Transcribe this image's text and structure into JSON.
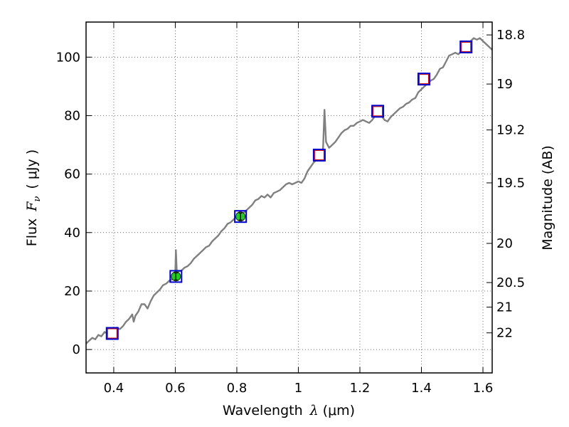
{
  "chart_data": {
    "type": "line",
    "title": "",
    "xlabel": "Wavelength",
    "xlabel_symbol": "λ",
    "xlabel_unit": "(μm)",
    "ylabel": "Flux",
    "ylabel_symbol": "F",
    "ylabel_subscript": "ν",
    "ylabel_unit": "( μJy )",
    "y2label": "Magnitude (AB)",
    "xlim": [
      0.31,
      1.63
    ],
    "ylim": [
      -8,
      112
    ],
    "grid": true,
    "x_ticks": [
      0.4,
      0.6,
      0.8,
      1.0,
      1.2,
      1.4,
      1.6
    ],
    "x_tick_labels": [
      "0.4",
      "0.6",
      "0.8",
      "1",
      "1.2",
      "1.4",
      "1.6"
    ],
    "y_ticks": [
      0,
      20,
      40,
      60,
      80,
      100
    ],
    "y_tick_labels": [
      "0",
      "20",
      "40",
      "60",
      "80",
      "100"
    ],
    "mag_ticks": [
      {
        "label": "18.8",
        "flux": 107.6
      },
      {
        "label": "19",
        "flux": 90.8
      },
      {
        "label": "19.2",
        "flux": 75.1
      },
      {
        "label": "19.5",
        "flux": 57.0
      },
      {
        "label": "20",
        "flux": 36.3
      },
      {
        "label": "20.5",
        "flux": 22.9
      },
      {
        "label": "21",
        "flux": 14.5
      },
      {
        "label": "22",
        "flux": 5.7
      }
    ],
    "series": [
      {
        "name": "spectrum",
        "color": "#808080",
        "points": [
          [
            0.31,
            2.0
          ],
          [
            0.32,
            3.0
          ],
          [
            0.33,
            4.0
          ],
          [
            0.34,
            3.5
          ],
          [
            0.35,
            5.0
          ],
          [
            0.36,
            4.5
          ],
          [
            0.37,
            6.0
          ],
          [
            0.38,
            5.5
          ],
          [
            0.39,
            6.5
          ],
          [
            0.4,
            6.0
          ],
          [
            0.41,
            7.5
          ],
          [
            0.42,
            7.0
          ],
          [
            0.43,
            8.0
          ],
          [
            0.44,
            9.5
          ],
          [
            0.45,
            10.5
          ],
          [
            0.46,
            12.0
          ],
          [
            0.465,
            9.5
          ],
          [
            0.47,
            11.5
          ],
          [
            0.48,
            13.0
          ],
          [
            0.49,
            15.5
          ],
          [
            0.5,
            15.5
          ],
          [
            0.51,
            14.0
          ],
          [
            0.52,
            16.5
          ],
          [
            0.53,
            18.5
          ],
          [
            0.54,
            19.5
          ],
          [
            0.55,
            20.5
          ],
          [
            0.56,
            22.0
          ],
          [
            0.57,
            22.5
          ],
          [
            0.58,
            23.5
          ],
          [
            0.59,
            24.0
          ],
          [
            0.6,
            25.5
          ],
          [
            0.602,
            34.0
          ],
          [
            0.605,
            26.5
          ],
          [
            0.62,
            27.0
          ],
          [
            0.63,
            28.0
          ],
          [
            0.64,
            28.5
          ],
          [
            0.65,
            29.5
          ],
          [
            0.66,
            31.0
          ],
          [
            0.67,
            32.0
          ],
          [
            0.68,
            33.0
          ],
          [
            0.69,
            34.0
          ],
          [
            0.7,
            35.0
          ],
          [
            0.71,
            35.5
          ],
          [
            0.72,
            37.0
          ],
          [
            0.73,
            38.0
          ],
          [
            0.74,
            39.0
          ],
          [
            0.75,
            40.5
          ],
          [
            0.76,
            41.5
          ],
          [
            0.77,
            43.0
          ],
          [
            0.78,
            43.5
          ],
          [
            0.79,
            44.5
          ],
          [
            0.8,
            45.5
          ],
          [
            0.81,
            45.5
          ],
          [
            0.82,
            46.5
          ],
          [
            0.83,
            47.5
          ],
          [
            0.84,
            48.5
          ],
          [
            0.85,
            49.5
          ],
          [
            0.86,
            51.0
          ],
          [
            0.87,
            51.5
          ],
          [
            0.88,
            52.5
          ],
          [
            0.89,
            52.0
          ],
          [
            0.9,
            53.0
          ],
          [
            0.91,
            52.0
          ],
          [
            0.92,
            53.5
          ],
          [
            0.93,
            54.0
          ],
          [
            0.94,
            54.5
          ],
          [
            0.95,
            55.5
          ],
          [
            0.96,
            56.5
          ],
          [
            0.97,
            57.0
          ],
          [
            0.98,
            56.5
          ],
          [
            0.99,
            57.0
          ],
          [
            1.0,
            57.5
          ],
          [
            1.01,
            57.0
          ],
          [
            1.02,
            58.5
          ],
          [
            1.03,
            61.0
          ],
          [
            1.04,
            62.5
          ],
          [
            1.05,
            64.0
          ],
          [
            1.06,
            65.0
          ],
          [
            1.07,
            66.0
          ],
          [
            1.08,
            68.0
          ],
          [
            1.085,
            82.0
          ],
          [
            1.09,
            71.0
          ],
          [
            1.1,
            69.0
          ],
          [
            1.11,
            70.0
          ],
          [
            1.12,
            71.0
          ],
          [
            1.13,
            72.5
          ],
          [
            1.14,
            74.0
          ],
          [
            1.15,
            75.0
          ],
          [
            1.16,
            75.5
          ],
          [
            1.17,
            76.5
          ],
          [
            1.18,
            76.5
          ],
          [
            1.19,
            77.5
          ],
          [
            1.2,
            78.0
          ],
          [
            1.21,
            78.5
          ],
          [
            1.22,
            78.0
          ],
          [
            1.23,
            77.5
          ],
          [
            1.24,
            78.5
          ],
          [
            1.25,
            80.0
          ],
          [
            1.26,
            80.5
          ],
          [
            1.27,
            80.0
          ],
          [
            1.28,
            78.5
          ],
          [
            1.29,
            78.0
          ],
          [
            1.3,
            79.5
          ],
          [
            1.31,
            80.5
          ],
          [
            1.32,
            81.5
          ],
          [
            1.33,
            82.5
          ],
          [
            1.34,
            83.0
          ],
          [
            1.35,
            84.0
          ],
          [
            1.36,
            84.5
          ],
          [
            1.37,
            85.5
          ],
          [
            1.38,
            86.0
          ],
          [
            1.39,
            88.0
          ],
          [
            1.4,
            89.0
          ],
          [
            1.41,
            90.0
          ],
          [
            1.42,
            91.0
          ],
          [
            1.43,
            92.0
          ],
          [
            1.44,
            92.5
          ],
          [
            1.45,
            94.0
          ],
          [
            1.46,
            96.0
          ],
          [
            1.47,
            96.5
          ],
          [
            1.48,
            98.5
          ],
          [
            1.49,
            100.5
          ],
          [
            1.5,
            101.0
          ],
          [
            1.51,
            101.5
          ],
          [
            1.52,
            101.0
          ],
          [
            1.53,
            102.0
          ],
          [
            1.54,
            104.0
          ],
          [
            1.55,
            104.5
          ],
          [
            1.56,
            105.5
          ],
          [
            1.57,
            106.5
          ],
          [
            1.58,
            106.0
          ],
          [
            1.59,
            106.5
          ],
          [
            1.6,
            105.5
          ],
          [
            1.61,
            104.5
          ],
          [
            1.62,
            103.5
          ],
          [
            1.63,
            102.5
          ]
        ]
      }
    ],
    "photometry": [
      {
        "x": 0.395,
        "y": 5.5,
        "fill": "#ffffff",
        "edge": "#cc0000"
      },
      {
        "x": 0.602,
        "y": 25.0,
        "fill": "#22cc22",
        "edge": "#000000",
        "yerr": 1.2
      },
      {
        "x": 0.812,
        "y": 45.5,
        "fill": "#22cc22",
        "edge": "#000000",
        "yerr": 1.2
      },
      {
        "x": 1.068,
        "y": 66.5,
        "fill": "#ffffff",
        "edge": "#cc0000"
      },
      {
        "x": 1.258,
        "y": 81.5,
        "fill": "#ffffff",
        "edge": "#cc0000"
      },
      {
        "x": 1.408,
        "y": 92.5,
        "fill": "#ffffff",
        "edge": "#cc0000"
      },
      {
        "x": 1.545,
        "y": 103.5,
        "fill": "#ffffff",
        "edge": "#cc0000"
      }
    ],
    "model_box_color": "#0000cc"
  }
}
